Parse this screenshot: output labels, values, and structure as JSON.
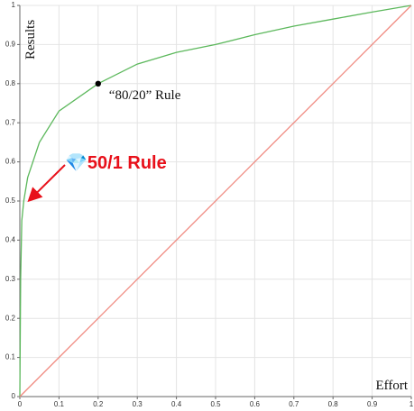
{
  "chart_data": {
    "type": "line",
    "x_label": "Effort",
    "y_label": "Results",
    "xlim": [
      0,
      1
    ],
    "ylim": [
      0,
      1
    ],
    "xticks": [
      0,
      0.1,
      0.2,
      0.3,
      0.4,
      0.5,
      0.6,
      0.7,
      0.8,
      0.9,
      1
    ],
    "yticks": [
      0,
      0.1,
      0.2,
      0.3,
      0.4,
      0.5,
      0.6,
      0.7,
      0.8,
      0.9,
      1
    ],
    "grid": true,
    "series": [
      {
        "color": "#5cb85c",
        "x": [
          0,
          0.002,
          0.005,
          0.01,
          0.02,
          0.05,
          0.1,
          0.2,
          0.3,
          0.4,
          0.5,
          0.6,
          0.7,
          0.8,
          0.9,
          1
        ],
        "values": [
          0,
          0.3,
          0.45,
          0.5,
          0.56,
          0.65,
          0.73,
          0.8,
          0.85,
          0.88,
          0.9,
          0.925,
          0.947,
          0.965,
          0.983,
          1
        ]
      },
      {
        "color": "#f08a80",
        "x": [
          0,
          1
        ],
        "values": [
          0,
          1
        ]
      }
    ],
    "highlight": {
      "x": 0.2,
      "y": 0.8,
      "label": "“80/20” Rule",
      "color": "#000000"
    },
    "annotation": {
      "text": "💎50/1 Rule",
      "color": "#e8101a",
      "x": 0.003,
      "y": 0.49
    }
  }
}
